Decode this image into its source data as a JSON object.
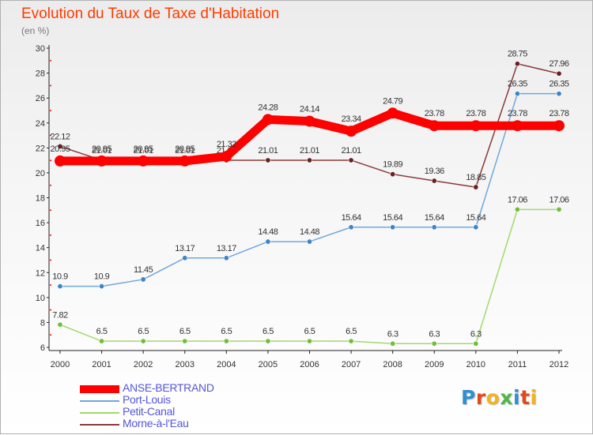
{
  "title": "Evolution du Taux de Taxe d'Habitation",
  "subtitle": "(en %)",
  "logo": {
    "text": "Proxiti",
    "letters": [
      {
        "ch": "P",
        "color": "#2f8fd0"
      },
      {
        "ch": "r",
        "color": "#e24a1c"
      },
      {
        "ch": "o",
        "color": "#f2b21f"
      },
      {
        "ch": "x",
        "color": "#4db848"
      },
      {
        "ch": "i",
        "color": "#2f8fd0"
      },
      {
        "ch": "t",
        "color": "#e24a1c"
      },
      {
        "ch": "i",
        "color": "#f2b21f"
      }
    ]
  },
  "chart_data": {
    "type": "line",
    "title": "Evolution du Taux de Taxe d'Habitation",
    "subtitle": "(en %)",
    "x": [
      "2000",
      "2001",
      "2002",
      "2003",
      "2004",
      "2005",
      "2006",
      "2007",
      "2008",
      "2009",
      "2010",
      "2011",
      "2012"
    ],
    "yticks": [
      "6",
      "8",
      "10",
      "12",
      "14",
      "16",
      "18",
      "20",
      "22",
      "24",
      "26",
      "28",
      "30"
    ],
    "ylim": [
      6,
      30
    ],
    "grid": false,
    "legend": "bottom-left",
    "series": [
      {
        "name": "ANSE-BERTRAND",
        "color": "#ff0000",
        "thick": true,
        "values": [
          20.95,
          20.95,
          20.95,
          20.95,
          21.32,
          24.28,
          24.14,
          23.34,
          24.79,
          23.78,
          23.78,
          23.78,
          23.78
        ],
        "labels": [
          "20.95",
          "20.95",
          "20.95",
          "20.95",
          "21.32",
          "24.28",
          "24.14",
          "23.34",
          "24.79",
          "23.78",
          "23.78",
          "23.78",
          "23.78"
        ]
      },
      {
        "name": "Port-Louis",
        "color": "#6fa8dc",
        "marker": "#3d85c6",
        "values": [
          10.9,
          10.9,
          11.45,
          13.17,
          13.17,
          14.48,
          14.48,
          15.64,
          15.64,
          15.64,
          15.64,
          26.35,
          26.35
        ],
        "labels": [
          "10.9",
          "10.9",
          "11.45",
          "13.17",
          "13.17",
          "14.48",
          "14.48",
          "15.64",
          "15.64",
          "15.64",
          "15.64",
          "26.35",
          "26.35"
        ]
      },
      {
        "name": "Petit-Canal",
        "color": "#a4d86e",
        "marker": "#6fbf3a",
        "values": [
          7.82,
          6.5,
          6.5,
          6.5,
          6.5,
          6.5,
          6.5,
          6.5,
          6.3,
          6.3,
          6.3,
          17.06,
          17.06
        ],
        "labels": [
          "7.82",
          "6.5",
          "6.5",
          "6.5",
          "6.5",
          "6.5",
          "6.5",
          "6.5",
          "6.3",
          "6.3",
          "6.3",
          "17.06",
          "17.06"
        ]
      },
      {
        "name": "Morne-à-l'Eau",
        "color": "#8b3a3a",
        "marker": "#6b1f1f",
        "values": [
          22.12,
          21.01,
          21.01,
          21.01,
          21.01,
          21.01,
          21.01,
          21.01,
          19.89,
          19.36,
          18.85,
          28.75,
          27.96
        ],
        "labels": [
          "22.12",
          "21.01",
          "21.01",
          "21.01",
          "21.01",
          "21.01",
          "21.01",
          "21.01",
          "19.89",
          "19.36",
          "18.85",
          "28.75",
          "27.96"
        ]
      }
    ]
  }
}
